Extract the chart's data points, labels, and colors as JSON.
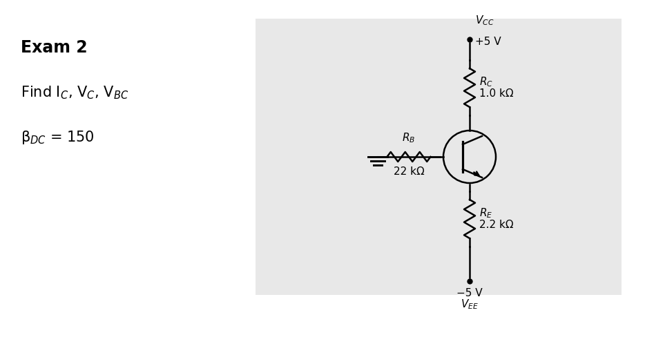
{
  "title": "Exam 2",
  "find_text": "Find I$_C$, V$_C$, V$_{BC}$",
  "beta_text": "β$_{DC}$ = 150",
  "vcc_label": "V$_{CC}$",
  "vcc_value": "+5 V",
  "vee_label": "V$_{EE}$",
  "vee_value": "−5 V",
  "rc_label": "R$_C$",
  "rc_value": "1.0 kΩ",
  "rb_label": "R$_B$",
  "rb_value": "22 kΩ",
  "re_label": "R$_E$",
  "re_value": "2.2 kΩ",
  "bg_color": "#ffffff",
  "text_color": "#000000",
  "circuit_bg": "#e8e8e8",
  "line_color": "#000000",
  "lw": 1.8
}
